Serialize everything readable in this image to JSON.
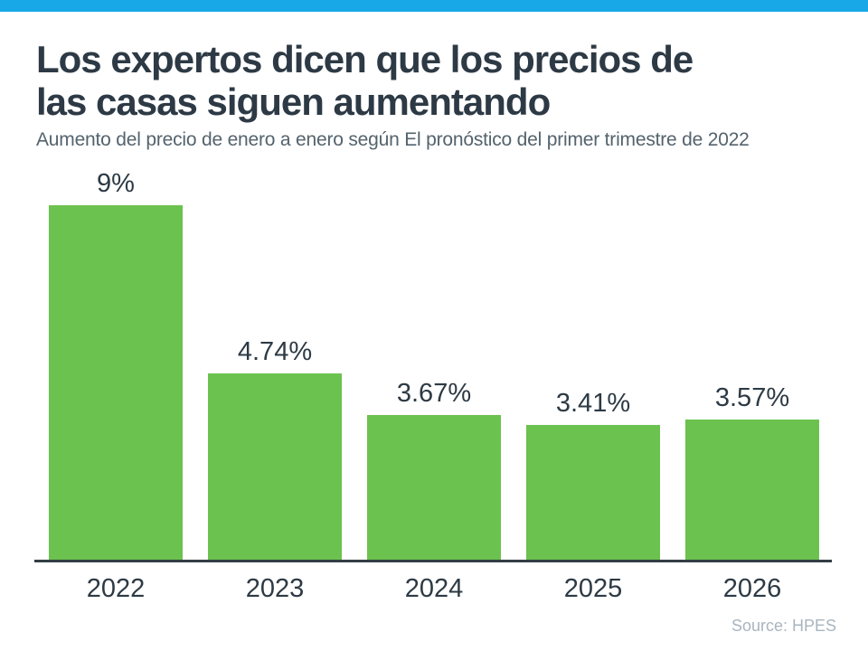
{
  "accent": {
    "top_bar_color": "#18a8e8",
    "text_dark": "#2d3a45",
    "text_gray": "#54636d",
    "source_gray": "#a9b5bf",
    "axis_color": "#333e44"
  },
  "header": {
    "title_lines": [
      "Los expertos dicen que los precios de",
      "las casas siguen aumentando"
    ],
    "subtitle": "Aumento del precio de enero a enero según El pronóstico del primer trimestre de 2022"
  },
  "chart_data": {
    "type": "bar",
    "categories": [
      "2022",
      "2023",
      "2024",
      "2025",
      "2026"
    ],
    "values": [
      9,
      4.74,
      3.67,
      3.41,
      3.57
    ],
    "value_labels": [
      "9%",
      "4.74%",
      "3.67%",
      "3.41%",
      "3.57%"
    ],
    "title": "Los expertos dicen que los precios de las casas siguen aumentando",
    "subtitle": "Aumento del precio de enero a enero según El pronóstico del primer trimestre de 2022",
    "xlabel": "",
    "ylabel": "",
    "ylim": [
      0,
      9
    ],
    "grid": false,
    "legend": null,
    "bar_color": "#6cc24e"
  },
  "footer": {
    "source": "Source: HPES"
  }
}
